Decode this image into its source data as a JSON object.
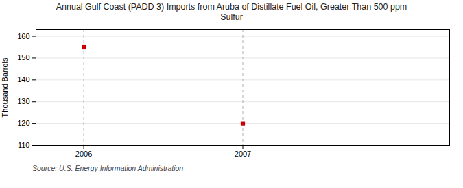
{
  "chart_data": {
    "type": "scatter",
    "title": "Annual Gulf Coast (PADD 3) Imports from Aruba of Distillate Fuel Oil, Greater Than 500 ppm\nSulfur",
    "ylabel": "Thousand Barrels",
    "source": "Source: U.S. Energy Information Administration",
    "x": [
      2006,
      2007
    ],
    "values": [
      155,
      120
    ],
    "color": "#cc0000",
    "marker": "square",
    "xlim": [
      2005.7,
      2008.3
    ],
    "ylim": [
      110,
      163
    ],
    "xticks": [
      2006,
      2007
    ],
    "yticks": [
      110,
      120,
      130,
      140,
      150,
      160
    ],
    "grid": true
  }
}
